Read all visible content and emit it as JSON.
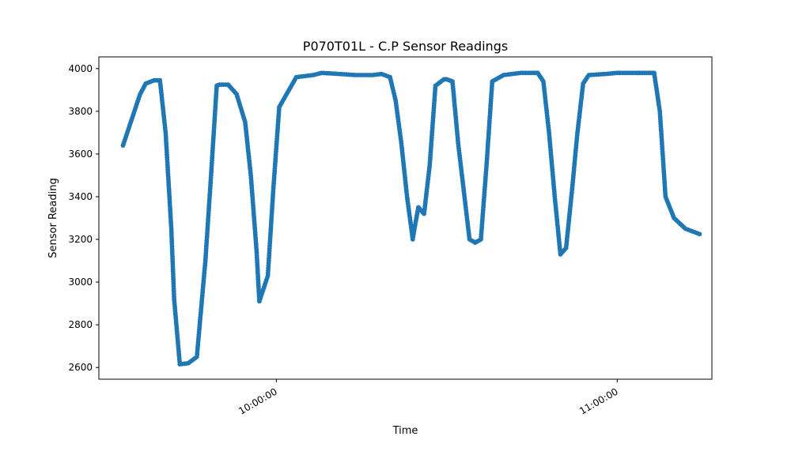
{
  "chart_data": {
    "type": "line",
    "title": "P070T01L - C.P Sensor Readings",
    "xlabel": "Time",
    "ylabel": "Sensor Reading",
    "x_unit": "clock time (HH:MM:SS)",
    "xlim": [
      "09:28:45",
      "11:16:40"
    ],
    "ylim": [
      2545,
      4055
    ],
    "y_ticks": [
      2600,
      2800,
      3000,
      3200,
      3400,
      3600,
      3800,
      4000
    ],
    "x_ticks": [
      "10:00:00",
      "11:00:00"
    ],
    "grid": false,
    "legend": false,
    "marker": "circle",
    "color": "#1f77b4",
    "series": [
      {
        "x": [
          "09:33:00",
          "09:34:30",
          "09:36:00",
          "09:37:00",
          "09:38:30",
          "09:39:30",
          "09:40:30",
          "09:41:30",
          "09:42:00",
          "09:43:00",
          "09:44:30",
          "09:46:00",
          "09:47:30",
          "09:48:30",
          "09:49:30",
          "09:50:00",
          "09:51:30",
          "09:53:00",
          "09:54:30",
          "09:55:30",
          "09:56:30",
          "09:57:00",
          "09:58:30",
          "09:59:30",
          "10:00:30",
          "10:03:30",
          "10:06:30",
          "10:08:00",
          "10:11:00",
          "10:14:00",
          "10:17:00",
          "10:18:30",
          "10:20:00",
          "10:21:00",
          "10:22:00",
          "10:23:00",
          "10:24:00",
          "10:24:30",
          "10:25:00",
          "10:26:00",
          "10:27:00",
          "10:28:00",
          "10:29:30",
          "10:30:00",
          "10:31:00",
          "10:32:00",
          "10:34:00",
          "10:35:00",
          "10:36:00",
          "10:37:00",
          "10:38:00",
          "10:40:00",
          "10:43:00",
          "10:46:00",
          "10:47:00",
          "10:48:00",
          "10:49:00",
          "10:50:00",
          "10:51:00",
          "10:52:00",
          "10:53:00",
          "10:54:00",
          "10:55:00",
          "10:58:00",
          "11:00:00",
          "11:03:30",
          "11:04:00",
          "11:05:30",
          "11:06:30",
          "11:07:30",
          "11:08:30",
          "11:10:00",
          "11:12:00",
          "11:14:30"
        ],
        "y": [
          3640,
          3760,
          3880,
          3930,
          3945,
          3945,
          3700,
          3250,
          2920,
          2615,
          2620,
          2650,
          3100,
          3500,
          3920,
          3925,
          3925,
          3880,
          3750,
          3500,
          3150,
          2910,
          3030,
          3450,
          3820,
          3960,
          3970,
          3980,
          3975,
          3970,
          3970,
          3975,
          3960,
          3850,
          3650,
          3400,
          3200,
          3280,
          3350,
          3320,
          3550,
          3920,
          3950,
          3950,
          3940,
          3650,
          3200,
          3185,
          3200,
          3550,
          3940,
          3970,
          3980,
          3980,
          3940,
          3700,
          3400,
          3130,
          3160,
          3420,
          3700,
          3930,
          3970,
          3975,
          3980,
          3980,
          3980,
          3980,
          3980,
          3800,
          3400,
          3300,
          3250,
          3225
        ]
      }
    ]
  }
}
